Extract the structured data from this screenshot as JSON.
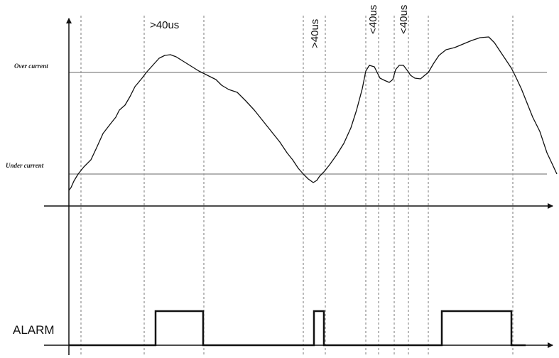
{
  "levels": {
    "over_current_label": "Over current",
    "under_current_label": "Under current"
  },
  "timing_labels": {
    "t1": ">40us",
    "t2": ">40us",
    "t3": "<40us",
    "t4": "<40us"
  },
  "alarm": {
    "label": "ALARM"
  },
  "colors": {
    "level_line": "#9a9a9a",
    "signal": "#111111",
    "guide": "#777777"
  }
}
